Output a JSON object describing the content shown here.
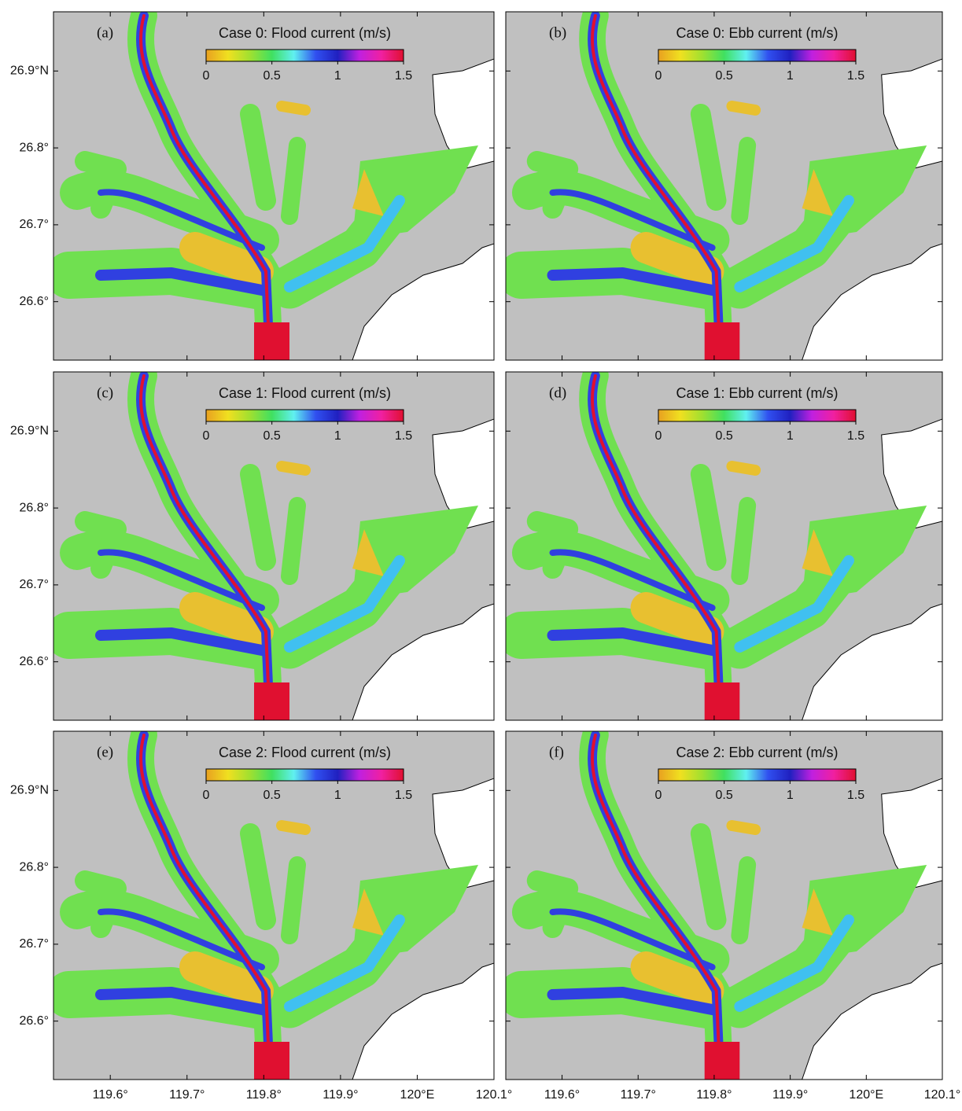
{
  "panels": [
    {
      "label": "(a)",
      "title": "Case 0: Flood current (m/s)"
    },
    {
      "label": "(b)",
      "title": "Case 0: Ebb current (m/s)"
    },
    {
      "label": "(c)",
      "title": "Case 1: Flood current (m/s)"
    },
    {
      "label": "(d)",
      "title": "Case 1: Ebb current (m/s)"
    },
    {
      "label": "(e)",
      "title": "Case 2: Flood current (m/s)"
    },
    {
      "label": "(f)",
      "title": "Case 2: Ebb current (m/s)"
    }
  ],
  "colorbar": {
    "range": [
      0,
      1.5
    ],
    "ticks": [
      0,
      0.5,
      1,
      1.5
    ],
    "colors": [
      "#e8a020",
      "#f0e020",
      "#a0e030",
      "#40e060",
      "#60f0f0",
      "#3050f0",
      "#2020c0",
      "#c020e0",
      "#f020a0",
      "#e01030"
    ]
  },
  "x_axis": {
    "lim": [
      119.526,
      120.1
    ],
    "ticks": [
      {
        "value": 119.6,
        "label": "119.6°"
      },
      {
        "value": 119.7,
        "label": "119.7°"
      },
      {
        "value": 119.8,
        "label": "119.8°"
      },
      {
        "value": 119.9,
        "label": "119.9°"
      },
      {
        "value": 120,
        "label": "120°E"
      },
      {
        "value": 120.1,
        "label": "120.1°"
      }
    ]
  },
  "y_axis": {
    "lim": [
      26.524,
      26.977
    ],
    "ticks": [
      {
        "value": 26.9,
        "label": "26.9°N"
      },
      {
        "value": 26.8,
        "label": "26.8°"
      },
      {
        "value": 26.7,
        "label": "26.7°"
      },
      {
        "value": 26.6,
        "label": "26.6°"
      }
    ]
  }
}
